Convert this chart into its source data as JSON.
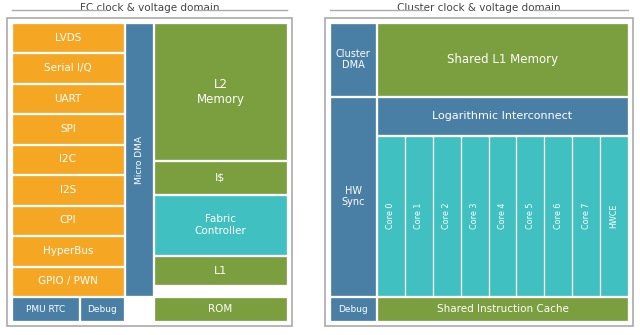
{
  "colors": {
    "orange": "#F5A623",
    "blue": "#4A7FA5",
    "green": "#7B9E3E",
    "teal": "#40C0C0",
    "border_gray": "#AAAAAA",
    "white": "#FFFFFF"
  },
  "fc_title": "FC clock & voltage domain",
  "cluster_title": "Cluster clock & voltage domain",
  "orange_blocks": [
    "LVDS",
    "Serial I/Q",
    "UART",
    "SPI",
    "I2C",
    "I2S",
    "CPI",
    "HyperBus",
    "GPIO / PWN"
  ],
  "cluster_cores": [
    "Core 0",
    "Core 1",
    "Core 2",
    "Core 3",
    "Core 4",
    "Core 5",
    "Core 6",
    "Core 7",
    "HWCE"
  ]
}
